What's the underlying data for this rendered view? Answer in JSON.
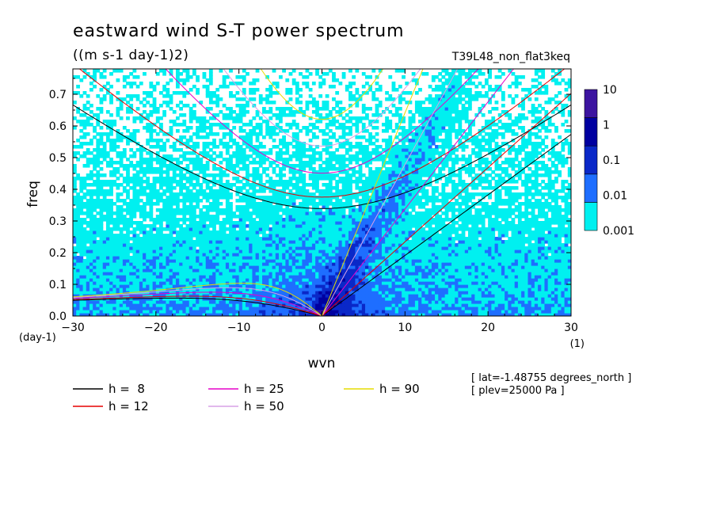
{
  "chart_data": {
    "type": "heatmap",
    "title": "eastward wind S-T power spectrum",
    "subtitle": "((m s-1 day-1)2)",
    "dataset_label": "T39L48_non_flat3keq",
    "xlabel": "wvn",
    "ylabel": "freq",
    "x_unit": "(1)",
    "y_unit": "(day-1)",
    "xlim": [
      -30,
      30
    ],
    "ylim": [
      0,
      0.78
    ],
    "x_ticks": [
      -30,
      -20,
      -10,
      0,
      10,
      20,
      30
    ],
    "y_ticks": [
      0.0,
      0.1,
      0.2,
      0.3,
      0.4,
      0.5,
      0.6,
      0.7
    ],
    "colorbar": {
      "levels": [
        0.001,
        0.01,
        0.1,
        1,
        10
      ],
      "labels": [
        "0.001",
        "0.01",
        "0.1",
        "1",
        "10"
      ],
      "colors": [
        "#00f0f0",
        "#1e6eff",
        "#0a28c8",
        "#0000a0",
        "#3c14a0"
      ],
      "below_color": "#ffffff"
    },
    "dispersion_curves": [
      {
        "label": "h =  8",
        "h": 8,
        "color": "#000000"
      },
      {
        "label": "h = 12",
        "h": 12,
        "color": "#e60000"
      },
      {
        "label": "h = 25",
        "h": 25,
        "color": "#e600c8"
      },
      {
        "label": "h = 50",
        "h": 50,
        "color": "#d7a0e6"
      },
      {
        "label": "h = 90",
        "h": 90,
        "color": "#e6dc00"
      }
    ],
    "annotations": [
      "[ lat=-1.48755 degrees_north ]",
      "[ plev=25000 Pa ]"
    ]
  }
}
